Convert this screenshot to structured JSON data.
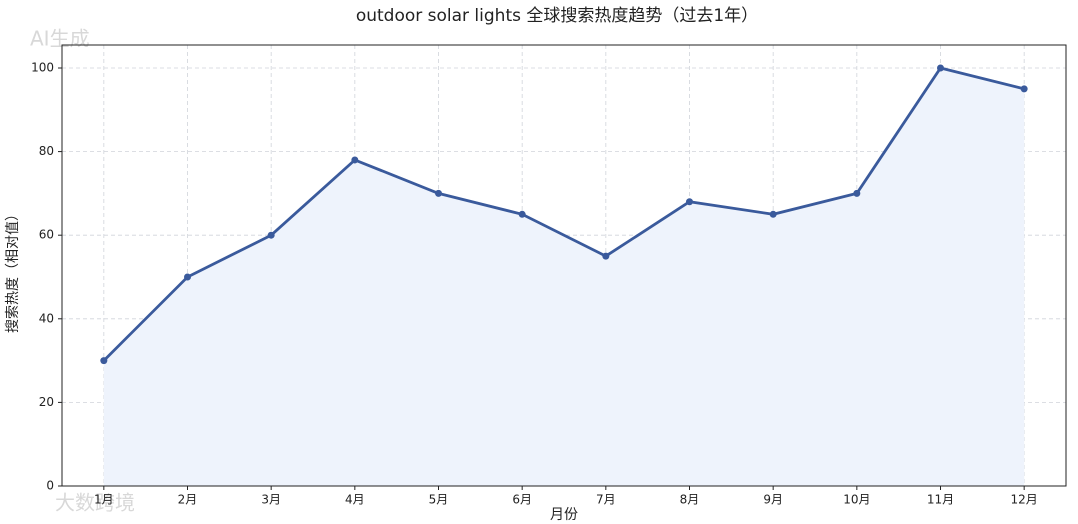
{
  "chart_data": {
    "type": "line",
    "title": "outdoor solar lights 全球搜索热度趋势（过去1年）",
    "x_label": "月份",
    "y_label": "搜索热度（相对值）",
    "categories": [
      "1月",
      "2月",
      "3月",
      "4月",
      "5月",
      "6月",
      "7月",
      "8月",
      "9月",
      "10月",
      "11月",
      "12月"
    ],
    "values": [
      30,
      50,
      60,
      78,
      70,
      65,
      55,
      68,
      65,
      70,
      100,
      95
    ],
    "color": "#3a5a9c",
    "fill": "#eef3fc",
    "ylim": [
      0,
      105.5
    ],
    "yticks": [
      0,
      20,
      40,
      60,
      80,
      100
    ],
    "grid": true,
    "watermarks": [
      "AI生成",
      "大数跨境"
    ]
  }
}
